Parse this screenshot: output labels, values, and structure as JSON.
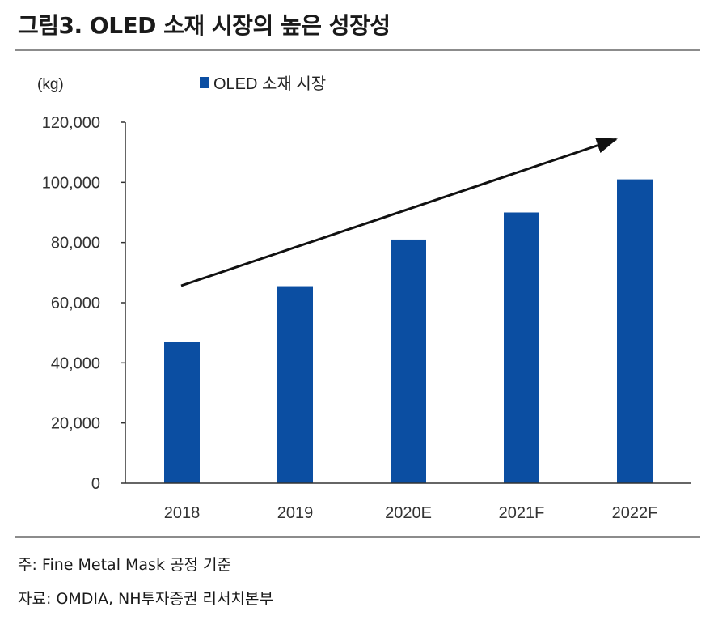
{
  "figure": {
    "title": "그림3. OLED 소재 시장의 높은 성장성",
    "footnote": "주: Fine Metal Mask 공정 기준",
    "source": "자료: OMDIA, NH투자증권 리서치본부"
  },
  "colors": {
    "bar": "#0b4ea2",
    "axis": "#333333",
    "arrow": "#111111",
    "rule": "#8c8c8c"
  },
  "chart_data": {
    "type": "bar",
    "title": "",
    "unit_label": "(kg)",
    "xlabel": "",
    "ylabel": "",
    "categories": [
      "2018",
      "2019",
      "2020E",
      "2021F",
      "2022F"
    ],
    "series": [
      {
        "name": "OLED 소재 시장",
        "values": [
          47000,
          65500,
          81000,
          90000,
          101000
        ]
      }
    ],
    "ylim": [
      0,
      120000
    ],
    "yticks": [
      0,
      20000,
      40000,
      60000,
      80000,
      100000,
      120000
    ],
    "ytick_labels": [
      "0",
      "20,000",
      "40,000",
      "60,000",
      "80,000",
      "100,000",
      "120,000"
    ],
    "grid": false,
    "legend_position": "top-center",
    "annotation": "upward trend arrow"
  }
}
